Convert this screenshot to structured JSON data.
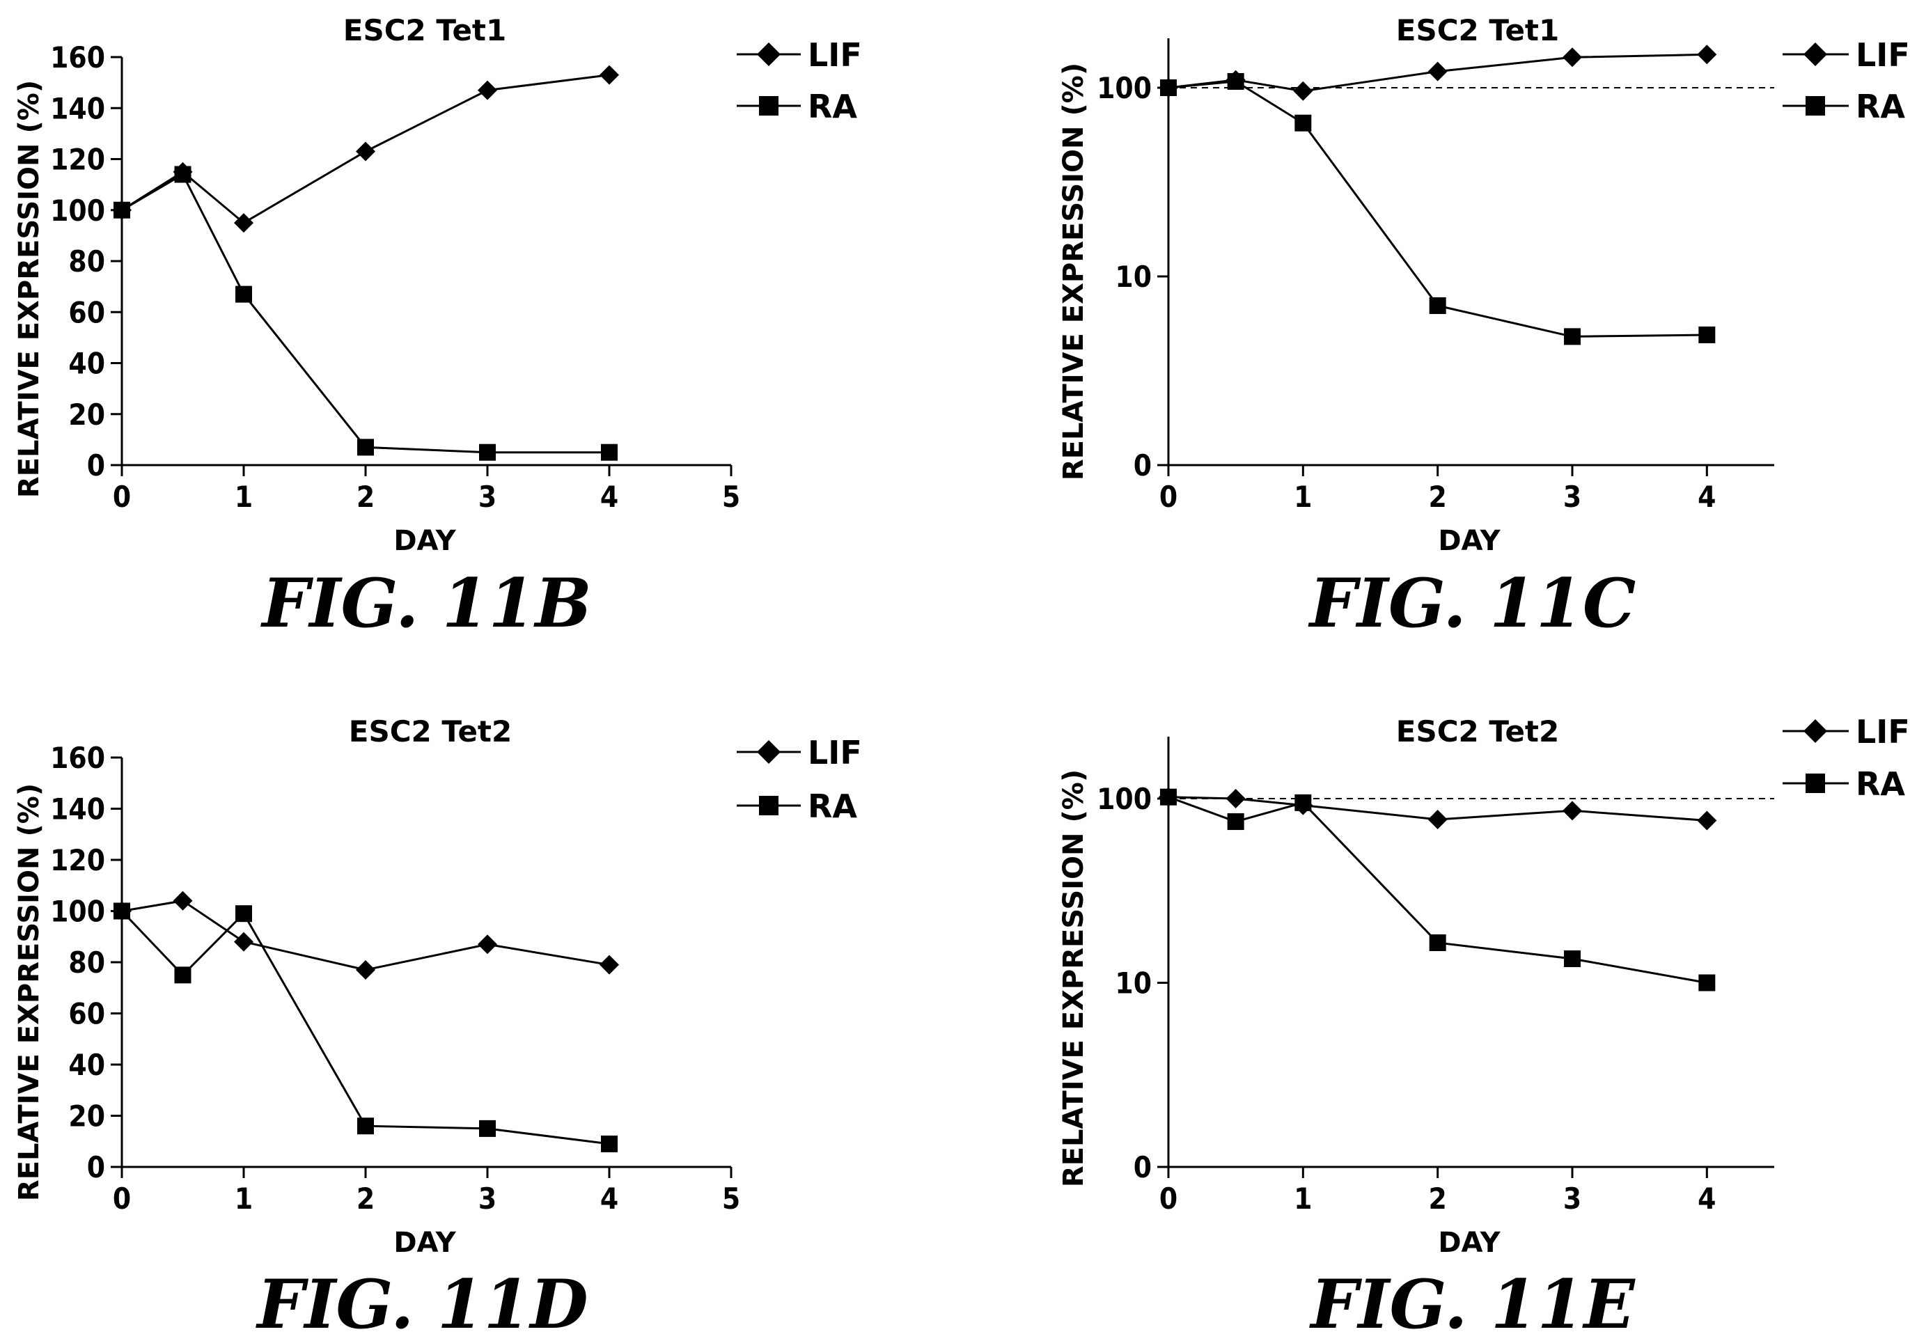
{
  "chart_data": [
    {
      "id": "11B",
      "type": "line",
      "title": "ESC2 Tet1",
      "xlabel": "DAY",
      "ylabel": "RELATIVE EXPRESSION (%)",
      "caption": "FIG.  11B",
      "yscale": "linear",
      "xlim": [
        0,
        5
      ],
      "ylim": [
        0,
        160
      ],
      "x_ticks": [
        0,
        1,
        2,
        3,
        4,
        5
      ],
      "y_ticks": [
        0,
        20,
        40,
        60,
        80,
        100,
        120,
        140,
        160
      ],
      "x_tick_labels": [
        "0",
        "1",
        "2",
        "3",
        "4",
        "5"
      ],
      "y_tick_labels": [
        "0",
        "20",
        "40",
        "60",
        "80",
        "100",
        "120",
        "140",
        "160"
      ],
      "reference_line": null,
      "legend_position": "top-right",
      "series": [
        {
          "name": "LIF",
          "marker": "diamond",
          "x": [
            0,
            0.5,
            1,
            2,
            3,
            4
          ],
          "y": [
            100,
            115,
            95,
            123,
            147,
            153
          ]
        },
        {
          "name": "RA",
          "marker": "square",
          "x": [
            0,
            0.5,
            1,
            2,
            3,
            4
          ],
          "y": [
            100,
            114,
            67,
            7,
            5,
            5
          ]
        }
      ]
    },
    {
      "id": "11C",
      "type": "line",
      "title": "ESC2 Tet1",
      "xlabel": "DAY",
      "ylabel": "RELATIVE EXPRESSION (%)",
      "caption": "FIG.  11C",
      "yscale": "log",
      "xlim": [
        0,
        4.5
      ],
      "ylim": [
        1,
        200
      ],
      "x_ticks": [
        0,
        1,
        2,
        3,
        4
      ],
      "y_ticks": [
        1,
        10,
        100
      ],
      "x_tick_labels": [
        "0",
        "1",
        "2",
        "3",
        "4"
      ],
      "y_tick_labels": [
        "0",
        "10",
        "100"
      ],
      "reference_line": 100,
      "legend_position": "top-right",
      "series": [
        {
          "name": "LIF",
          "marker": "diamond",
          "x": [
            0,
            0.5,
            1,
            2,
            3,
            4
          ],
          "y": [
            100,
            110,
            96,
            122,
            145,
            150
          ]
        },
        {
          "name": "RA",
          "marker": "square",
          "x": [
            0,
            0.5,
            1,
            2,
            3,
            4
          ],
          "y": [
            100,
            108,
            65,
            7,
            4.8,
            4.9
          ]
        }
      ]
    },
    {
      "id": "11D",
      "type": "line",
      "title": "ESC2 Tet2",
      "xlabel": "DAY",
      "ylabel": "RELATIVE EXPRESSION (%)",
      "caption": "FIG.  11D",
      "yscale": "linear",
      "xlim": [
        0,
        5
      ],
      "ylim": [
        0,
        160
      ],
      "x_ticks": [
        0,
        1,
        2,
        3,
        4,
        5
      ],
      "y_ticks": [
        0,
        20,
        40,
        60,
        80,
        100,
        120,
        140,
        160
      ],
      "x_tick_labels": [
        "0",
        "1",
        "2",
        "3",
        "4",
        "5"
      ],
      "y_tick_labels": [
        "0",
        "20",
        "40",
        "60",
        "80",
        "100",
        "120",
        "140",
        "160"
      ],
      "reference_line": null,
      "legend_position": "top-right",
      "series": [
        {
          "name": "LIF",
          "marker": "diamond",
          "x": [
            0,
            0.5,
            1,
            2,
            3,
            4
          ],
          "y": [
            100,
            104,
            88,
            77,
            87,
            79
          ]
        },
        {
          "name": "RA",
          "marker": "square",
          "x": [
            0,
            0.5,
            1,
            2,
            3,
            4
          ],
          "y": [
            100,
            75,
            99,
            16,
            15,
            9
          ]
        }
      ]
    },
    {
      "id": "11E",
      "type": "line",
      "title": "ESC2 Tet2",
      "xlabel": "DAY",
      "ylabel": "RELATIVE EXPRESSION (%)",
      "caption": "FIG.  11E",
      "yscale": "log",
      "xlim": [
        0,
        4.5
      ],
      "ylim": [
        1,
        200
      ],
      "x_ticks": [
        0,
        1,
        2,
        3,
        4
      ],
      "y_ticks": [
        1,
        10,
        100
      ],
      "x_tick_labels": [
        "0",
        "1",
        "2",
        "3",
        "4"
      ],
      "y_tick_labels": [
        "0",
        "10",
        "100"
      ],
      "reference_line": 100,
      "legend_position": "top-right",
      "series": [
        {
          "name": "LIF",
          "marker": "diamond",
          "x": [
            0,
            0.5,
            1,
            2,
            3,
            4
          ],
          "y": [
            102,
            100,
            92,
            77,
            86,
            76
          ]
        },
        {
          "name": "RA",
          "marker": "square",
          "x": [
            0,
            0.5,
            1,
            2,
            3,
            4
          ],
          "y": [
            102,
            75,
            95,
            16.5,
            13.5,
            10
          ]
        }
      ]
    }
  ]
}
